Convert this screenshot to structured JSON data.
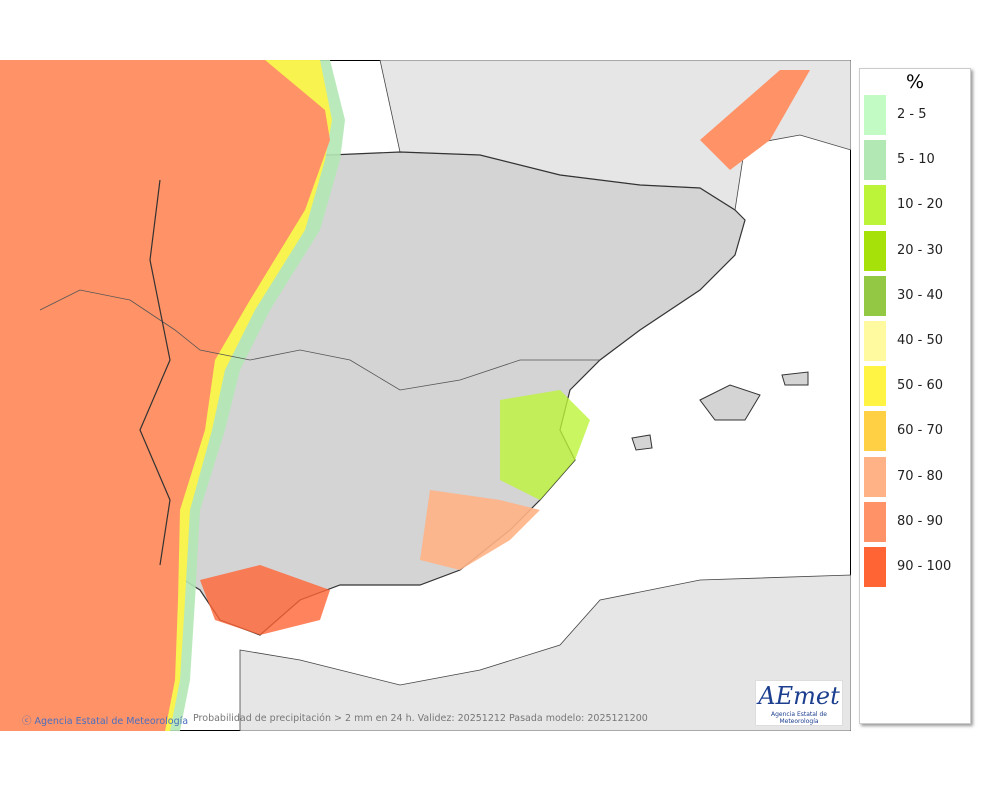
{
  "legend": {
    "title": "%",
    "items": [
      {
        "label": "2 - 5",
        "color": "#c2fcc4"
      },
      {
        "label": "5 - 10",
        "color": "#b2e8b4"
      },
      {
        "label": "10 - 20",
        "color": "#bcf43a"
      },
      {
        "label": "20 - 30",
        "color": "#a6e20a"
      },
      {
        "label": "30 - 40",
        "color": "#92c844"
      },
      {
        "label": "40 - 50",
        "color": "#fffaa0"
      },
      {
        "label": "50 - 60",
        "color": "#fff444"
      },
      {
        "label": "60 - 70",
        "color": "#ffd044"
      },
      {
        "label": "70 - 80",
        "color": "#ffb286"
      },
      {
        "label": "80 - 90",
        "color": "#ff9266"
      },
      {
        "label": "90 - 100",
        "color": "#ff6434"
      }
    ]
  },
  "footer": {
    "credit": "Agencia Estatal de Meteorología",
    "caption": "Probabilidad de precipitación > 2 mm en 24 h. Validez: 20251212 Pasada modelo: 2025121200"
  },
  "logo": {
    "name": "AEmet",
    "subtitle": "Agencia Estatal de Meteorología"
  }
}
